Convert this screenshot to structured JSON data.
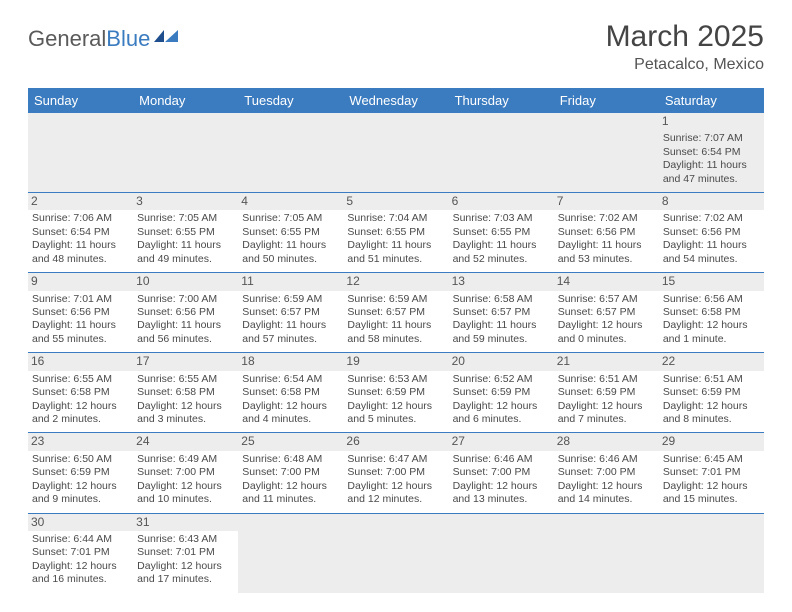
{
  "logo": {
    "text1": "General",
    "text2": "Blue"
  },
  "title": "March 2025",
  "subtitle": "Petacalco, Mexico",
  "colors": {
    "header_bg": "#3b7bbf",
    "header_text": "#ffffff",
    "daynum_bg": "#ededed"
  },
  "day_headers": [
    "Sunday",
    "Monday",
    "Tuesday",
    "Wednesday",
    "Thursday",
    "Friday",
    "Saturday"
  ],
  "weeks": [
    [
      null,
      null,
      null,
      null,
      null,
      null,
      {
        "n": "1",
        "sunrise": "7:07 AM",
        "sunset": "6:54 PM",
        "daylight": "11 hours and 47 minutes."
      }
    ],
    [
      {
        "n": "2",
        "sunrise": "7:06 AM",
        "sunset": "6:54 PM",
        "daylight": "11 hours and 48 minutes."
      },
      {
        "n": "3",
        "sunrise": "7:05 AM",
        "sunset": "6:55 PM",
        "daylight": "11 hours and 49 minutes."
      },
      {
        "n": "4",
        "sunrise": "7:05 AM",
        "sunset": "6:55 PM",
        "daylight": "11 hours and 50 minutes."
      },
      {
        "n": "5",
        "sunrise": "7:04 AM",
        "sunset": "6:55 PM",
        "daylight": "11 hours and 51 minutes."
      },
      {
        "n": "6",
        "sunrise": "7:03 AM",
        "sunset": "6:55 PM",
        "daylight": "11 hours and 52 minutes."
      },
      {
        "n": "7",
        "sunrise": "7:02 AM",
        "sunset": "6:56 PM",
        "daylight": "11 hours and 53 minutes."
      },
      {
        "n": "8",
        "sunrise": "7:02 AM",
        "sunset": "6:56 PM",
        "daylight": "11 hours and 54 minutes."
      }
    ],
    [
      {
        "n": "9",
        "sunrise": "7:01 AM",
        "sunset": "6:56 PM",
        "daylight": "11 hours and 55 minutes."
      },
      {
        "n": "10",
        "sunrise": "7:00 AM",
        "sunset": "6:56 PM",
        "daylight": "11 hours and 56 minutes."
      },
      {
        "n": "11",
        "sunrise": "6:59 AM",
        "sunset": "6:57 PM",
        "daylight": "11 hours and 57 minutes."
      },
      {
        "n": "12",
        "sunrise": "6:59 AM",
        "sunset": "6:57 PM",
        "daylight": "11 hours and 58 minutes."
      },
      {
        "n": "13",
        "sunrise": "6:58 AM",
        "sunset": "6:57 PM",
        "daylight": "11 hours and 59 minutes."
      },
      {
        "n": "14",
        "sunrise": "6:57 AM",
        "sunset": "6:57 PM",
        "daylight": "12 hours and 0 minutes."
      },
      {
        "n": "15",
        "sunrise": "6:56 AM",
        "sunset": "6:58 PM",
        "daylight": "12 hours and 1 minute."
      }
    ],
    [
      {
        "n": "16",
        "sunrise": "6:55 AM",
        "sunset": "6:58 PM",
        "daylight": "12 hours and 2 minutes."
      },
      {
        "n": "17",
        "sunrise": "6:55 AM",
        "sunset": "6:58 PM",
        "daylight": "12 hours and 3 minutes."
      },
      {
        "n": "18",
        "sunrise": "6:54 AM",
        "sunset": "6:58 PM",
        "daylight": "12 hours and 4 minutes."
      },
      {
        "n": "19",
        "sunrise": "6:53 AM",
        "sunset": "6:59 PM",
        "daylight": "12 hours and 5 minutes."
      },
      {
        "n": "20",
        "sunrise": "6:52 AM",
        "sunset": "6:59 PM",
        "daylight": "12 hours and 6 minutes."
      },
      {
        "n": "21",
        "sunrise": "6:51 AM",
        "sunset": "6:59 PM",
        "daylight": "12 hours and 7 minutes."
      },
      {
        "n": "22",
        "sunrise": "6:51 AM",
        "sunset": "6:59 PM",
        "daylight": "12 hours and 8 minutes."
      }
    ],
    [
      {
        "n": "23",
        "sunrise": "6:50 AM",
        "sunset": "6:59 PM",
        "daylight": "12 hours and 9 minutes."
      },
      {
        "n": "24",
        "sunrise": "6:49 AM",
        "sunset": "7:00 PM",
        "daylight": "12 hours and 10 minutes."
      },
      {
        "n": "25",
        "sunrise": "6:48 AM",
        "sunset": "7:00 PM",
        "daylight": "12 hours and 11 minutes."
      },
      {
        "n": "26",
        "sunrise": "6:47 AM",
        "sunset": "7:00 PM",
        "daylight": "12 hours and 12 minutes."
      },
      {
        "n": "27",
        "sunrise": "6:46 AM",
        "sunset": "7:00 PM",
        "daylight": "12 hours and 13 minutes."
      },
      {
        "n": "28",
        "sunrise": "6:46 AM",
        "sunset": "7:00 PM",
        "daylight": "12 hours and 14 minutes."
      },
      {
        "n": "29",
        "sunrise": "6:45 AM",
        "sunset": "7:01 PM",
        "daylight": "12 hours and 15 minutes."
      }
    ],
    [
      {
        "n": "30",
        "sunrise": "6:44 AM",
        "sunset": "7:01 PM",
        "daylight": "12 hours and 16 minutes."
      },
      {
        "n": "31",
        "sunrise": "6:43 AM",
        "sunset": "7:01 PM",
        "daylight": "12 hours and 17 minutes."
      },
      null,
      null,
      null,
      null,
      null
    ]
  ],
  "labels": {
    "sunrise": "Sunrise: ",
    "sunset": "Sunset: ",
    "daylight": "Daylight: "
  }
}
